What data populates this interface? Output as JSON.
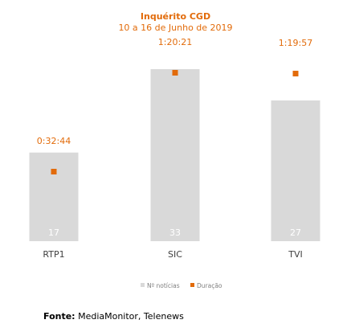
{
  "chart_data": {
    "type": "bar",
    "title": "Inquérito CGD",
    "subtitle": "10 a 16 de Junho de 2019",
    "categories": [
      "RTP1",
      "SIC",
      "TVI"
    ],
    "series": [
      {
        "name": "Nº notícias",
        "type": "bar",
        "values": [
          17,
          33,
          27
        ],
        "value_labels": [
          "17",
          "33",
          "27"
        ],
        "color": "#d9d9d9"
      },
      {
        "name": "Duração",
        "type": "marker",
        "values_seconds": [
          1964,
          4821,
          4797
        ],
        "value_labels": [
          "0:32:44",
          "1:20:21",
          "1:19:57"
        ],
        "color": "#e26b0a"
      }
    ],
    "ylim_count": [
      0,
      33
    ],
    "legend_position": "bottom",
    "grid": false
  },
  "source": {
    "label": "Fonte:",
    "text": "MediaMonitor, Telenews"
  }
}
